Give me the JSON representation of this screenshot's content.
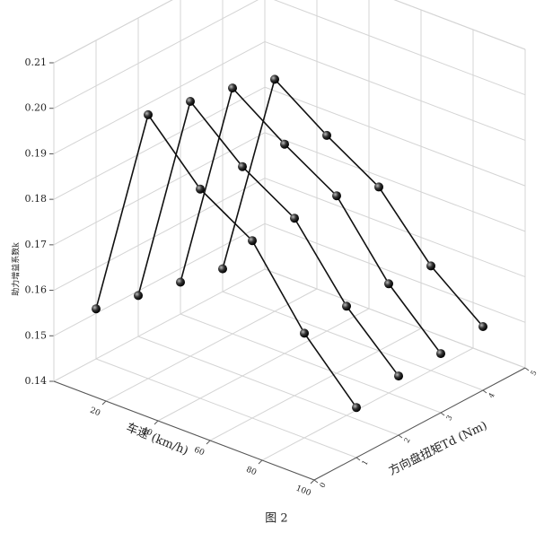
{
  "chart_data": {
    "type": "line3d",
    "caption": "图 2",
    "xlabel": "车速 (km/h)",
    "ylabel": "方向盘扭矩Td (Nm)",
    "zlabel": "助力增益系数k",
    "x": [
      0,
      20,
      40,
      60,
      80,
      100
    ],
    "xlim": [
      0,
      100
    ],
    "xticks": [
      20,
      40,
      60,
      80,
      100
    ],
    "ylim": [
      0,
      5
    ],
    "yticks": [
      0,
      1,
      2,
      3,
      4,
      5
    ],
    "zlim": [
      0.14,
      0.21
    ],
    "zticks": [
      0.14,
      0.15,
      0.16,
      0.17,
      0.18,
      0.19,
      {
        "value": 0.2,
        "label": "0.20"
      },
      0.21
    ],
    "grid": true,
    "color": "#111111",
    "series": [
      {
        "y": 1,
        "values": [
          0.151,
          0.198,
          0.186,
          0.179,
          0.163,
          0.151
        ]
      },
      {
        "y": 2,
        "values": [
          0.149,
          0.196,
          0.186,
          0.179,
          0.164,
          0.153
        ]
      },
      {
        "y": 3,
        "values": [
          0.147,
          0.194,
          0.186,
          0.179,
          0.164,
          0.153
        ]
      },
      {
        "y": 4,
        "values": [
          0.145,
          0.191,
          0.183,
          0.176,
          0.163,
          0.154
        ]
      }
    ]
  }
}
